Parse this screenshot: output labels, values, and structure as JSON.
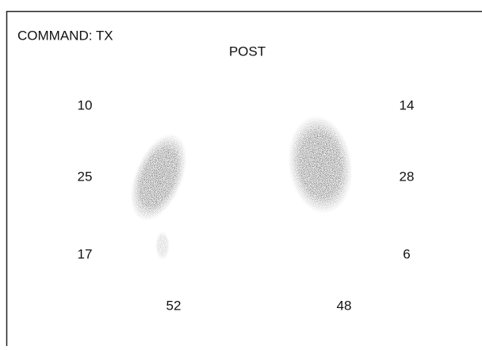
{
  "header": {
    "command": "COMMAND: TX",
    "view": "POST"
  },
  "left": {
    "upper": 10,
    "middle": 25,
    "lower": 17,
    "total": 52
  },
  "right": {
    "upper": 14,
    "middle": 28,
    "lower": 6,
    "total": 48
  }
}
